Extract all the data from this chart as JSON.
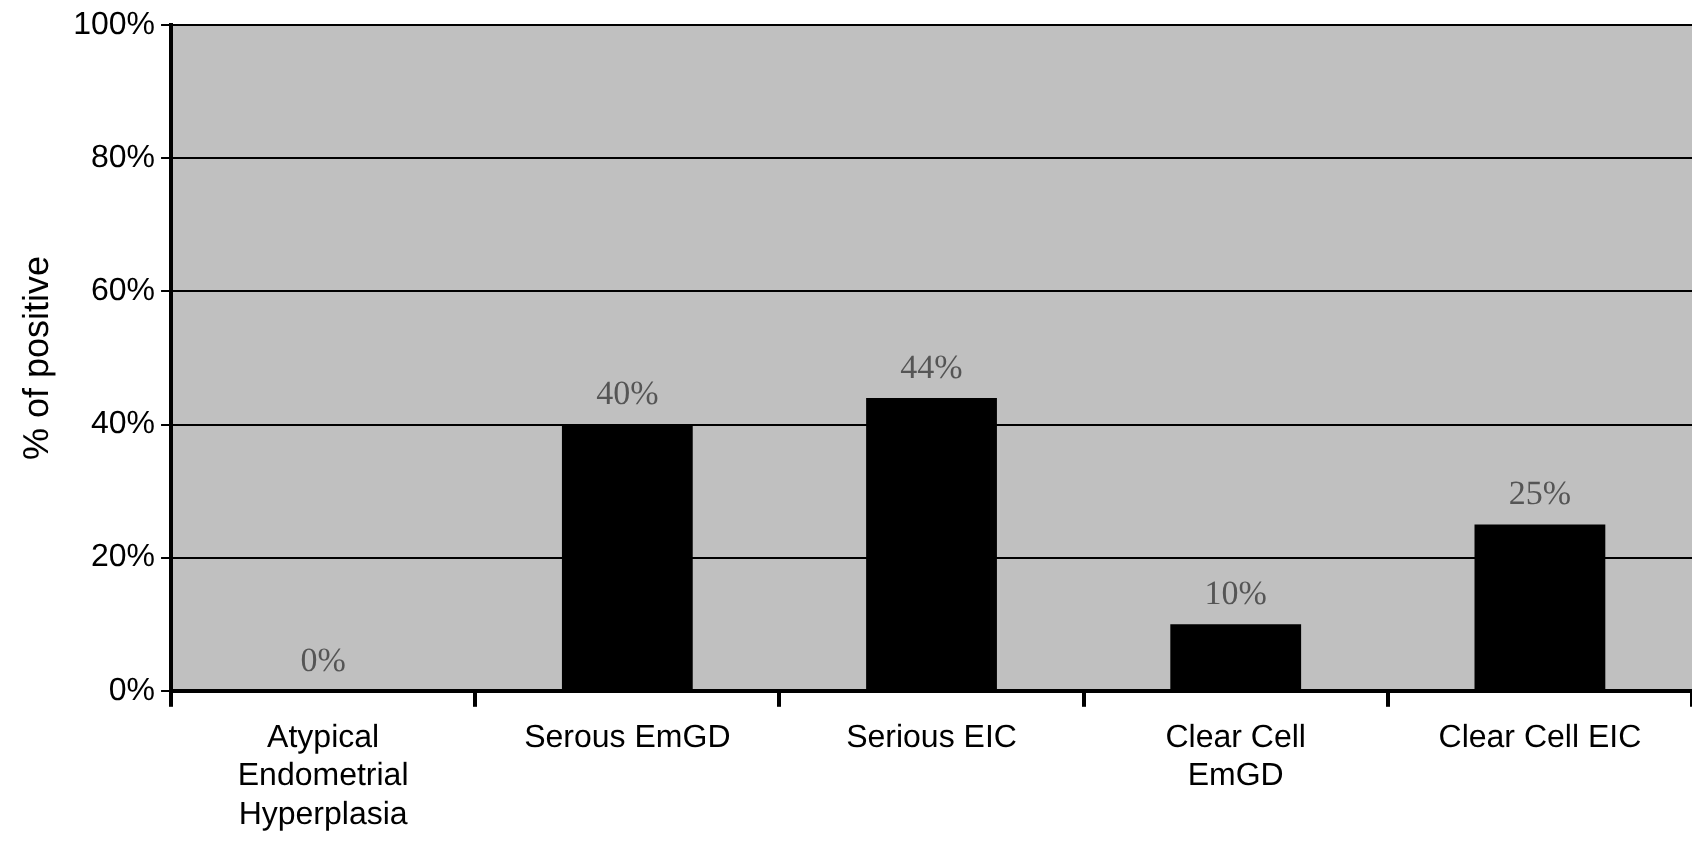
{
  "chart_data": {
    "type": "bar",
    "ylabel": "% of positive",
    "categories": [
      "Atypical Endometrial Hyperplasia",
      "Serous EmGD",
      "Serious EIC",
      "Clear Cell EmGD",
      "Clear Cell EIC"
    ],
    "values": [
      0,
      40,
      44,
      10,
      25
    ],
    "color": "#000000",
    "value_labels": [
      "0%",
      "40%",
      "44%",
      "10%",
      "25%"
    ],
    "ylim": [
      0,
      100
    ],
    "yticks": [
      {
        "value": 0,
        "label": "0%"
      },
      {
        "value": 20,
        "label": "20%"
      },
      {
        "value": 40,
        "label": "40%"
      },
      {
        "value": 60,
        "label": "60%"
      },
      {
        "value": 80,
        "label": "80%"
      },
      {
        "value": 100,
        "label": "100%"
      }
    ],
    "grid": "y",
    "legend": false
  }
}
